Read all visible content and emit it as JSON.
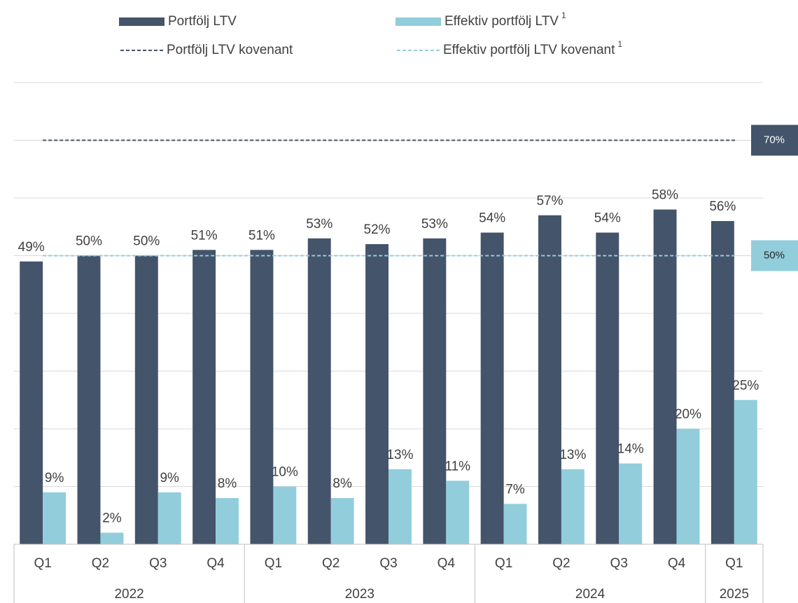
{
  "chart_data": {
    "type": "bar",
    "categories": [
      "Q1",
      "Q2",
      "Q3",
      "Q4",
      "Q1",
      "Q2",
      "Q3",
      "Q4",
      "Q1",
      "Q2",
      "Q3",
      "Q4",
      "Q1"
    ],
    "groups": [
      {
        "label": "2022",
        "span": 4
      },
      {
        "label": "2023",
        "span": 4
      },
      {
        "label": "2024",
        "span": 4
      },
      {
        "label": "2025",
        "span": 1
      }
    ],
    "series": [
      {
        "name": "Portfölj LTV",
        "color": "#44546a",
        "values": [
          49,
          50,
          50,
          51,
          51,
          53,
          52,
          53,
          54,
          57,
          54,
          58,
          56
        ],
        "value_labels": [
          "49%",
          "50%",
          "50%",
          "51%",
          "51%",
          "53%",
          "52%",
          "53%",
          "54%",
          "57%",
          "54%",
          "58%",
          "56%"
        ]
      },
      {
        "name": "Effektiv portfölj LTV",
        "footnote": "1",
        "color": "#92cddc",
        "values": [
          9,
          2,
          9,
          8,
          10,
          8,
          13,
          11,
          7,
          13,
          14,
          20,
          25
        ],
        "value_labels": [
          "9%",
          "2%",
          "9%",
          "8%",
          "10%",
          "8%",
          "13%",
          "11%",
          "7%",
          "13%",
          "14%",
          "20%",
          "25%"
        ]
      }
    ],
    "reference_lines": [
      {
        "name": "Portfölj LTV kovenant",
        "color": "#44546a",
        "value": 70,
        "label": "70%"
      },
      {
        "name": "Effektiv portfölj LTV kovenant",
        "footnote": "1",
        "color": "#92cddc",
        "value": 50,
        "label": "50%"
      }
    ],
    "ylim": [
      0,
      80
    ],
    "yticks": [
      0,
      10,
      20,
      30,
      40,
      50,
      60,
      70,
      80
    ],
    "grid": true
  }
}
